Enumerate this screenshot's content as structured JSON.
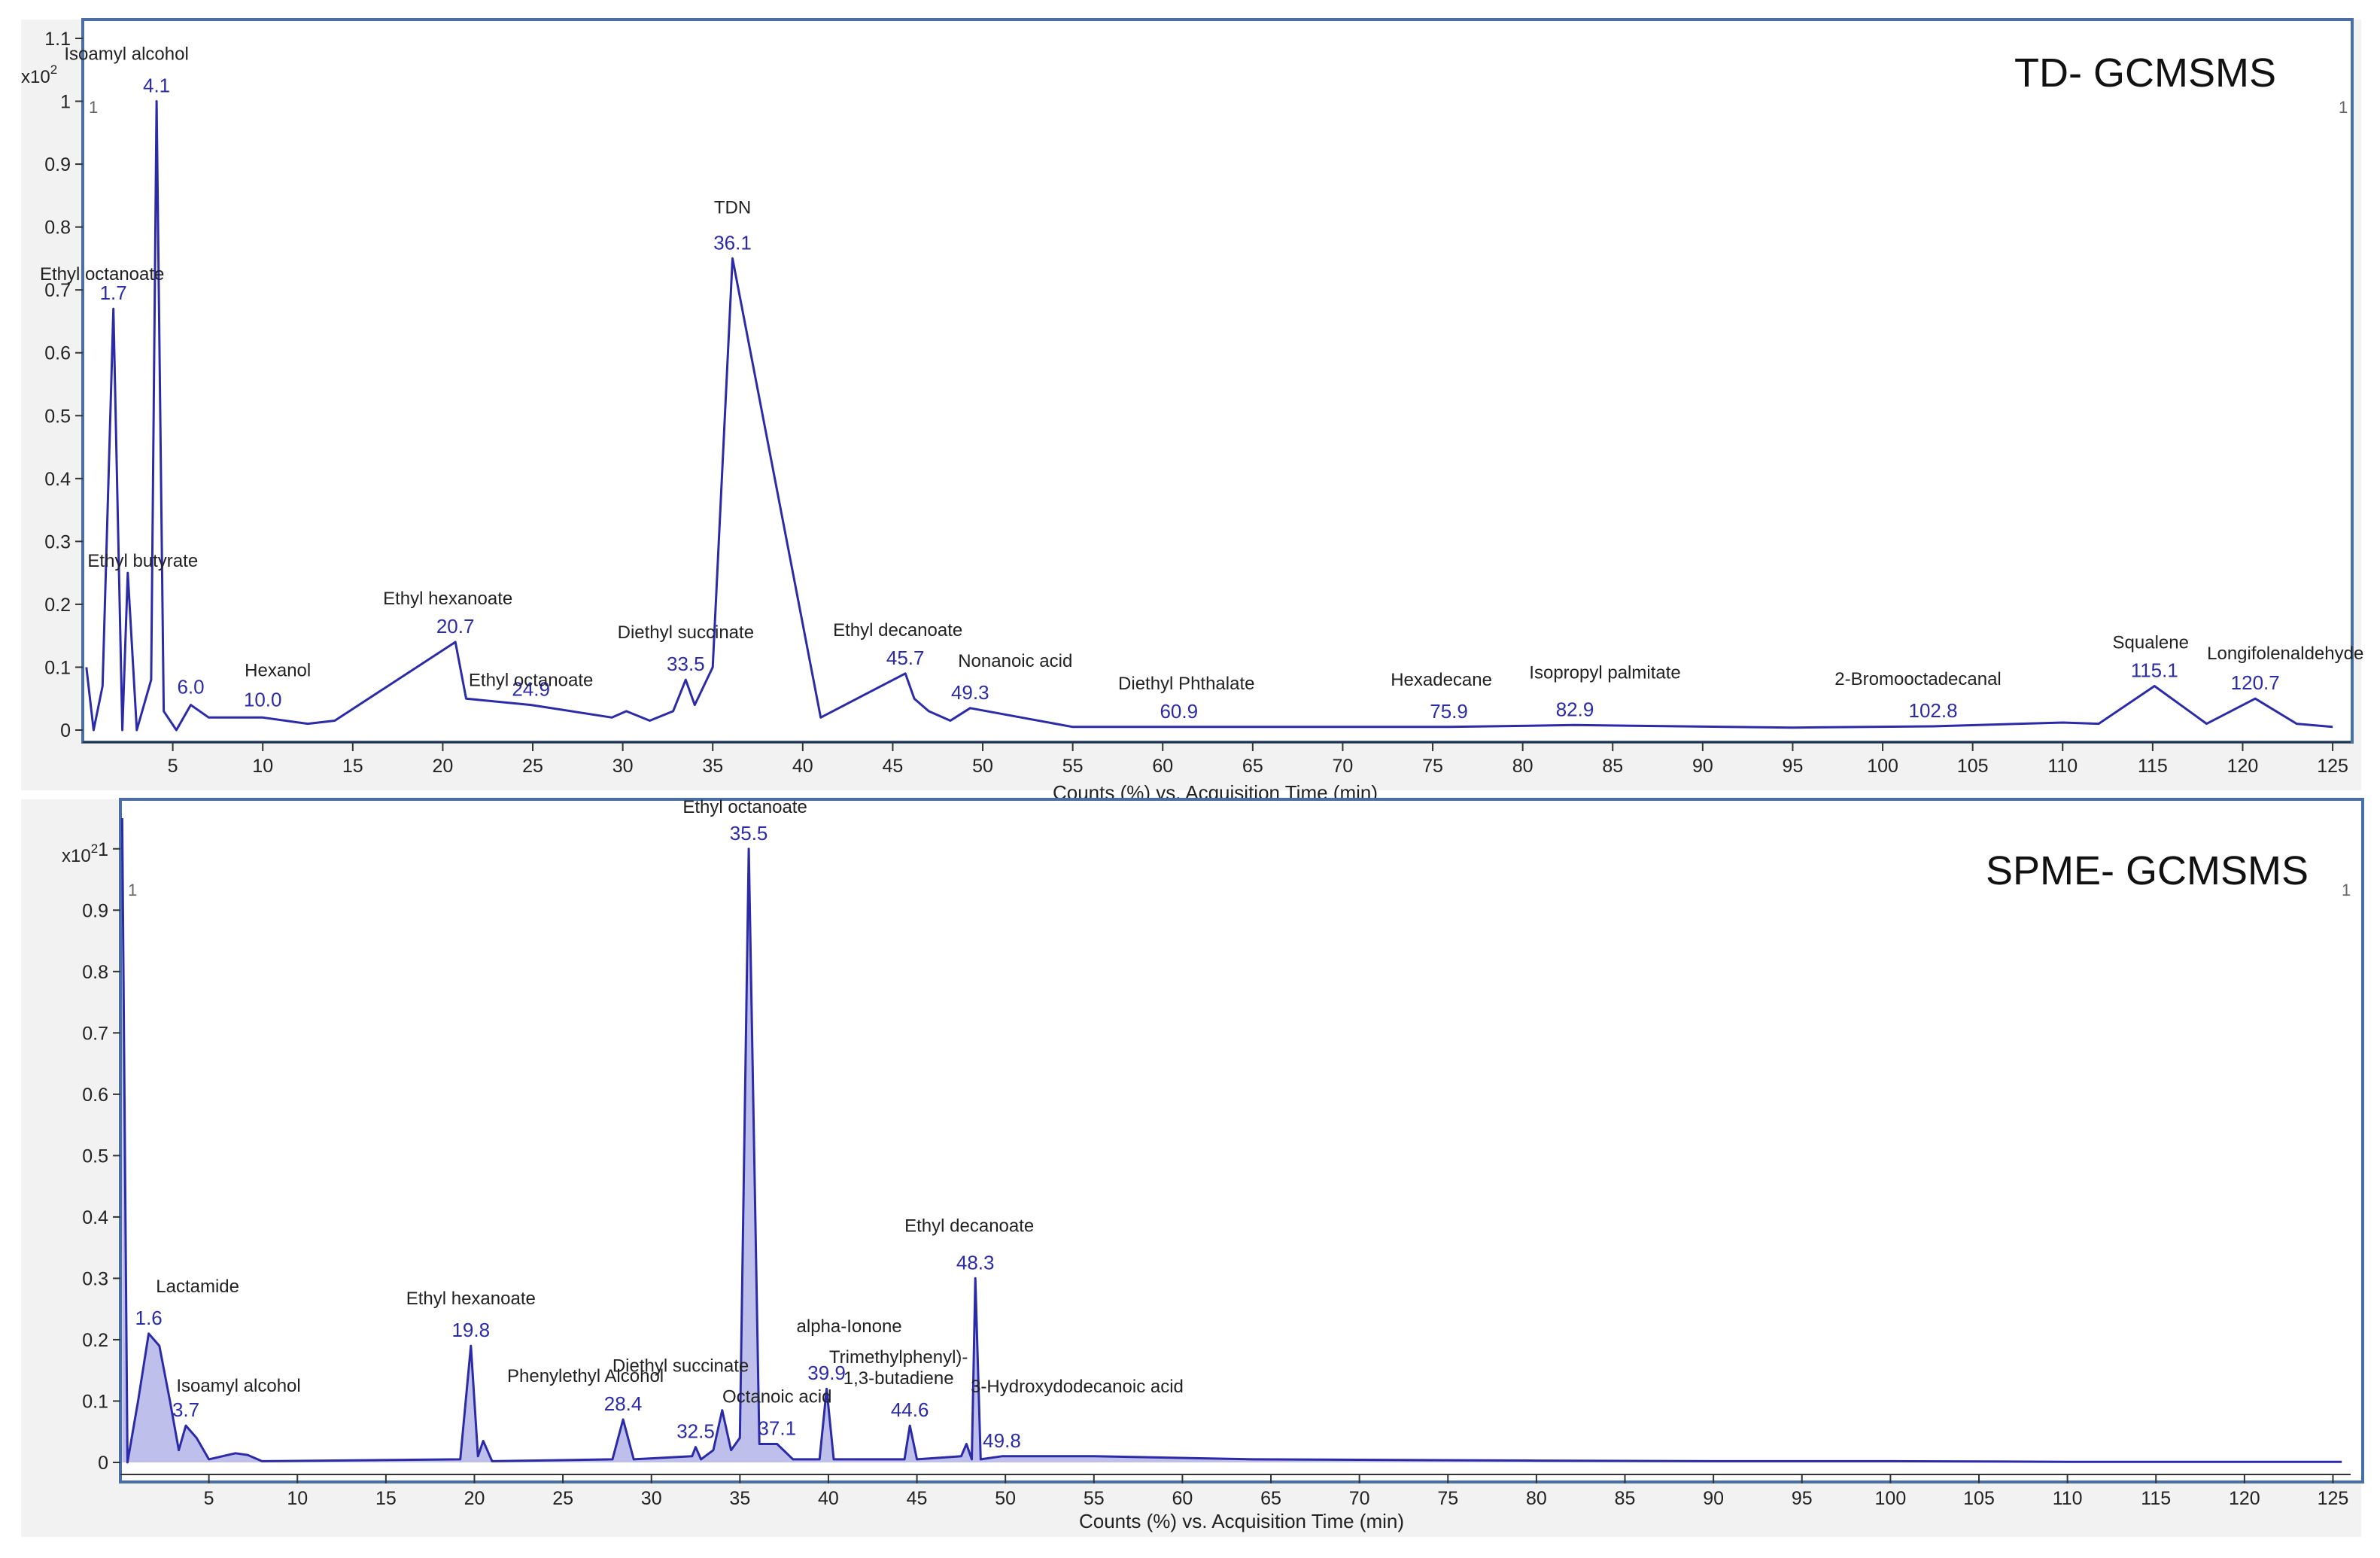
{
  "chart_data": [
    {
      "type": "line",
      "title": "TD- GCMSMS",
      "xlabel": "Counts (%) vs. Acquisition Time (min)",
      "ylabel": "",
      "y_scale_label": "x10",
      "y_scale_exp": "2",
      "xlim": [
        0,
        126
      ],
      "ylim": [
        0,
        1.1
      ],
      "x_ticks": [
        "5",
        "10",
        "15",
        "20",
        "25",
        "30",
        "35",
        "40",
        "45",
        "50",
        "55",
        "60",
        "65",
        "70",
        "75",
        "80",
        "85",
        "90",
        "95",
        "100",
        "105",
        "110",
        "115",
        "120",
        "125"
      ],
      "y_ticks": [
        "0",
        "0.1",
        "0.2",
        "0.3",
        "0.4",
        "0.5",
        "0.6",
        "0.7",
        "0.8",
        "0.9",
        "1",
        "1.1"
      ],
      "corner_label": "1",
      "color": "#2b2ba8",
      "fill": false,
      "series": [
        {
          "points": [
            [
              0.2,
              0.1
            ],
            [
              0.6,
              0.0
            ],
            [
              1.1,
              0.07
            ],
            [
              1.7,
              0.67
            ],
            [
              2.2,
              0.0
            ],
            [
              2.5,
              0.25
            ],
            [
              3.0,
              0.0
            ],
            [
              3.8,
              0.08
            ],
            [
              4.1,
              1.0
            ],
            [
              4.5,
              0.03
            ],
            [
              5.2,
              0.0
            ],
            [
              6.0,
              0.04
            ],
            [
              7.0,
              0.02
            ],
            [
              10.0,
              0.02
            ],
            [
              12.5,
              0.01
            ],
            [
              14.0,
              0.015
            ],
            [
              20.7,
              0.14
            ],
            [
              21.3,
              0.05
            ],
            [
              24.9,
              0.04
            ],
            [
              29.4,
              0.02
            ],
            [
              30.2,
              0.03
            ],
            [
              31.5,
              0.015
            ],
            [
              32.8,
              0.03
            ],
            [
              33.5,
              0.08
            ],
            [
              34.0,
              0.04
            ],
            [
              35.0,
              0.1
            ],
            [
              36.1,
              0.75
            ],
            [
              41.0,
              0.02
            ],
            [
              45.7,
              0.09
            ],
            [
              46.2,
              0.05
            ],
            [
              46.6,
              0.04
            ],
            [
              47.0,
              0.03
            ],
            [
              48.2,
              0.015
            ],
            [
              49.3,
              0.035
            ],
            [
              55.0,
              0.005
            ],
            [
              60.9,
              0.005
            ],
            [
              65.0,
              0.005
            ],
            [
              75.9,
              0.005
            ],
            [
              82.9,
              0.008
            ],
            [
              95.0,
              0.004
            ],
            [
              102.8,
              0.006
            ],
            [
              110.0,
              0.012
            ],
            [
              112.0,
              0.01
            ],
            [
              115.1,
              0.07
            ],
            [
              118.0,
              0.01
            ],
            [
              120.7,
              0.05
            ],
            [
              123.0,
              0.01
            ],
            [
              125.0,
              0.005
            ]
          ]
        }
      ],
      "labels": [
        {
          "name": "Isoamyl alcohol",
          "rt": "4.1",
          "x": 4.1,
          "y": 1.0
        },
        {
          "name": "Ethyl octanoate",
          "rt": "1.7",
          "x": 1.7,
          "y": 0.67
        },
        {
          "name": "Ethyl butyrate",
          "rt": "",
          "x": 2.5,
          "y": 0.25
        },
        {
          "name": "",
          "rt": "6.0",
          "x": 6.0,
          "y": 0.04
        },
        {
          "name": "Hexanol",
          "rt": "10.0",
          "x": 10.0,
          "y": 0.02
        },
        {
          "name": "Ethyl hexanoate",
          "rt": "20.7",
          "x": 20.7,
          "y": 0.14
        },
        {
          "name": "Ethyl octanoate",
          "rt": "24.9",
          "x": 24.9,
          "y": 0.04
        },
        {
          "name": "Diethyl succinate",
          "rt": "33.5",
          "x": 33.5,
          "y": 0.08
        },
        {
          "name": "TDN",
          "rt": "36.1",
          "x": 36.1,
          "y": 0.75
        },
        {
          "name": "Ethyl decanoate",
          "rt": "45.7",
          "x": 45.7,
          "y": 0.09
        },
        {
          "name": "Nonanoic acid",
          "rt": "49.3",
          "x": 49.3,
          "y": 0.035
        },
        {
          "name": "Diethyl Phthalate",
          "rt": "60.9",
          "x": 60.9,
          "y": 0.005
        },
        {
          "name": "Hexadecane",
          "rt": "75.9",
          "x": 75.9,
          "y": 0.005
        },
        {
          "name": "Isopropyl palmitate",
          "rt": "82.9",
          "x": 82.9,
          "y": 0.008
        },
        {
          "name": "2-Bromooctadecanal",
          "rt": "102.8",
          "x": 102.8,
          "y": 0.006
        },
        {
          "name": "Squalene",
          "rt": "115.1",
          "x": 115.1,
          "y": 0.07
        },
        {
          "name": "Longifolenaldehyde",
          "rt": "120.7",
          "x": 120.7,
          "y": 0.05
        }
      ]
    },
    {
      "type": "area",
      "title": "SPME- GCMSMS",
      "xlabel": "Counts (%) vs. Acquisition Time (min)",
      "ylabel": "",
      "y_scale_label": "x10",
      "y_scale_exp": "2",
      "xlim": [
        0,
        126
      ],
      "ylim": [
        0,
        1.05
      ],
      "x_ticks": [
        "5",
        "10",
        "15",
        "20",
        "25",
        "30",
        "35",
        "40",
        "45",
        "50",
        "55",
        "60",
        "65",
        "70",
        "75",
        "80",
        "85",
        "90",
        "95",
        "100",
        "105",
        "110",
        "115",
        "120",
        "125"
      ],
      "y_ticks": [
        "0",
        "0.1",
        "0.2",
        "0.3",
        "0.4",
        "0.5",
        "0.6",
        "0.7",
        "0.8",
        "0.9",
        "1"
      ],
      "corner_label": "1",
      "color": "#2b2ba8",
      "fill": true,
      "series": [
        {
          "points": [
            [
              0.1,
              1.05
            ],
            [
              0.4,
              0.0
            ],
            [
              1.0,
              0.1
            ],
            [
              1.6,
              0.21
            ],
            [
              2.2,
              0.19
            ],
            [
              2.8,
              0.1
            ],
            [
              3.3,
              0.02
            ],
            [
              3.7,
              0.06
            ],
            [
              4.3,
              0.04
            ],
            [
              5.0,
              0.005
            ],
            [
              6.5,
              0.015
            ],
            [
              7.2,
              0.012
            ],
            [
              8.0,
              0.002
            ],
            [
              19.2,
              0.005
            ],
            [
              19.8,
              0.19
            ],
            [
              20.2,
              0.01
            ],
            [
              20.5,
              0.035
            ],
            [
              21.0,
              0.002
            ],
            [
              27.8,
              0.005
            ],
            [
              28.4,
              0.07
            ],
            [
              29.0,
              0.005
            ],
            [
              32.3,
              0.01
            ],
            [
              32.5,
              0.025
            ],
            [
              32.8,
              0.005
            ],
            [
              33.5,
              0.02
            ],
            [
              34.0,
              0.085
            ],
            [
              34.5,
              0.02
            ],
            [
              35.0,
              0.04
            ],
            [
              35.5,
              1.0
            ],
            [
              36.1,
              0.03
            ],
            [
              37.1,
              0.03
            ],
            [
              38.0,
              0.005
            ],
            [
              39.5,
              0.005
            ],
            [
              39.9,
              0.12
            ],
            [
              40.3,
              0.005
            ],
            [
              44.3,
              0.005
            ],
            [
              44.6,
              0.06
            ],
            [
              45.0,
              0.005
            ],
            [
              47.5,
              0.01
            ],
            [
              47.8,
              0.03
            ],
            [
              48.1,
              0.005
            ],
            [
              48.3,
              0.3
            ],
            [
              48.6,
              0.005
            ],
            [
              49.8,
              0.01
            ],
            [
              55.0,
              0.01
            ],
            [
              64.0,
              0.005
            ],
            [
              72.0,
              0.004
            ],
            [
              80.0,
              0.003
            ],
            [
              90.0,
              0.002
            ],
            [
              100.0,
              0.002
            ],
            [
              110.0,
              0.001
            ],
            [
              125.5,
              0.001
            ]
          ]
        }
      ],
      "labels": [
        {
          "name": "Lactamide",
          "rt": "1.6",
          "x": 1.6,
          "y": 0.21
        },
        {
          "name": "Isoamyl alcohol",
          "rt": "3.7",
          "x": 3.7,
          "y": 0.06
        },
        {
          "name": "Ethyl hexanoate",
          "rt": "19.8",
          "x": 19.8,
          "y": 0.19
        },
        {
          "name": "Phenylethyl Alcohol",
          "rt": "28.4",
          "x": 28.4,
          "y": 0.07
        },
        {
          "name": "Diethyl succinate",
          "rt": "32.5",
          "x": 32.5,
          "y": 0.025
        },
        {
          "name": "Ethyl octanoate",
          "rt": "35.5",
          "x": 35.5,
          "y": 1.0
        },
        {
          "name": "Octanoic acid",
          "rt": "37.1",
          "x": 37.1,
          "y": 0.03
        },
        {
          "name": "alpha-Ionone",
          "rt": "39.9",
          "x": 39.9,
          "y": 0.12
        },
        {
          "name": "Trimethylphenyl)- 1,3-butadiene",
          "rt": "44.6",
          "x": 44.6,
          "y": 0.06
        },
        {
          "name": "Ethyl decanoate",
          "rt": "48.3",
          "x": 48.3,
          "y": 0.3
        },
        {
          "name": "3-Hydroxydodecanoic acid",
          "rt": "49.8",
          "x": 49.8,
          "y": 0.01
        }
      ]
    }
  ]
}
